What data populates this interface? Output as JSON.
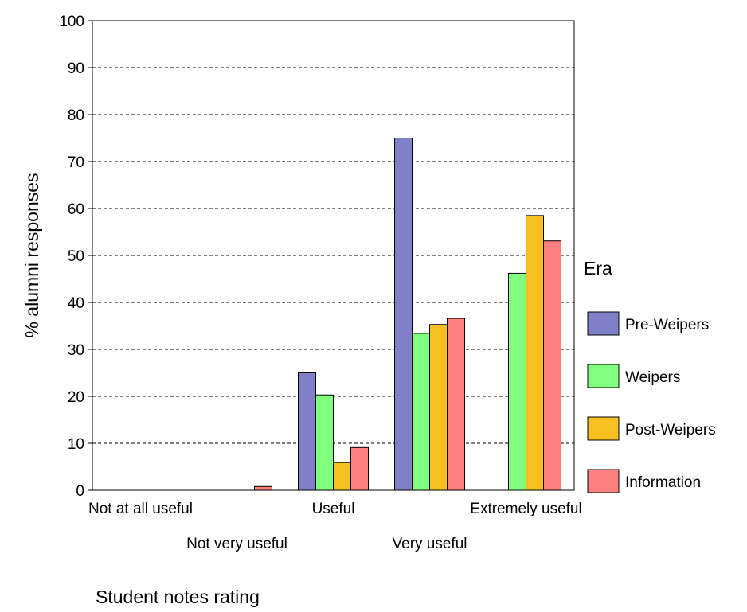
{
  "chart_data": {
    "type": "bar",
    "title": "",
    "xlabel": "Student notes rating",
    "ylabel": "% alumni responses",
    "ylim": [
      0,
      100
    ],
    "yticks": [
      0,
      10,
      20,
      30,
      40,
      50,
      60,
      70,
      80,
      90,
      100
    ],
    "grid": "horizontal dashed",
    "categories": [
      "Not at all useful",
      "Not very useful",
      "Useful",
      "Very useful",
      "Extremely useful"
    ],
    "legend": {
      "title": "Era",
      "placement": "right"
    },
    "series": [
      {
        "name": "Pre-Weipers",
        "color": "#8080c8",
        "values": [
          0,
          0,
          25,
          75,
          0
        ]
      },
      {
        "name": "Weipers",
        "color": "#80ff80",
        "values": [
          0,
          0,
          20.3,
          33.4,
          46.2
        ]
      },
      {
        "name": "Post-Weipers",
        "color": "#f8c020",
        "values": [
          0,
          0,
          5.9,
          35.3,
          58.5
        ]
      },
      {
        "name": "Information",
        "color": "#ff8080",
        "values": [
          0,
          0.8,
          9.1,
          36.6,
          53.1
        ]
      }
    ]
  }
}
